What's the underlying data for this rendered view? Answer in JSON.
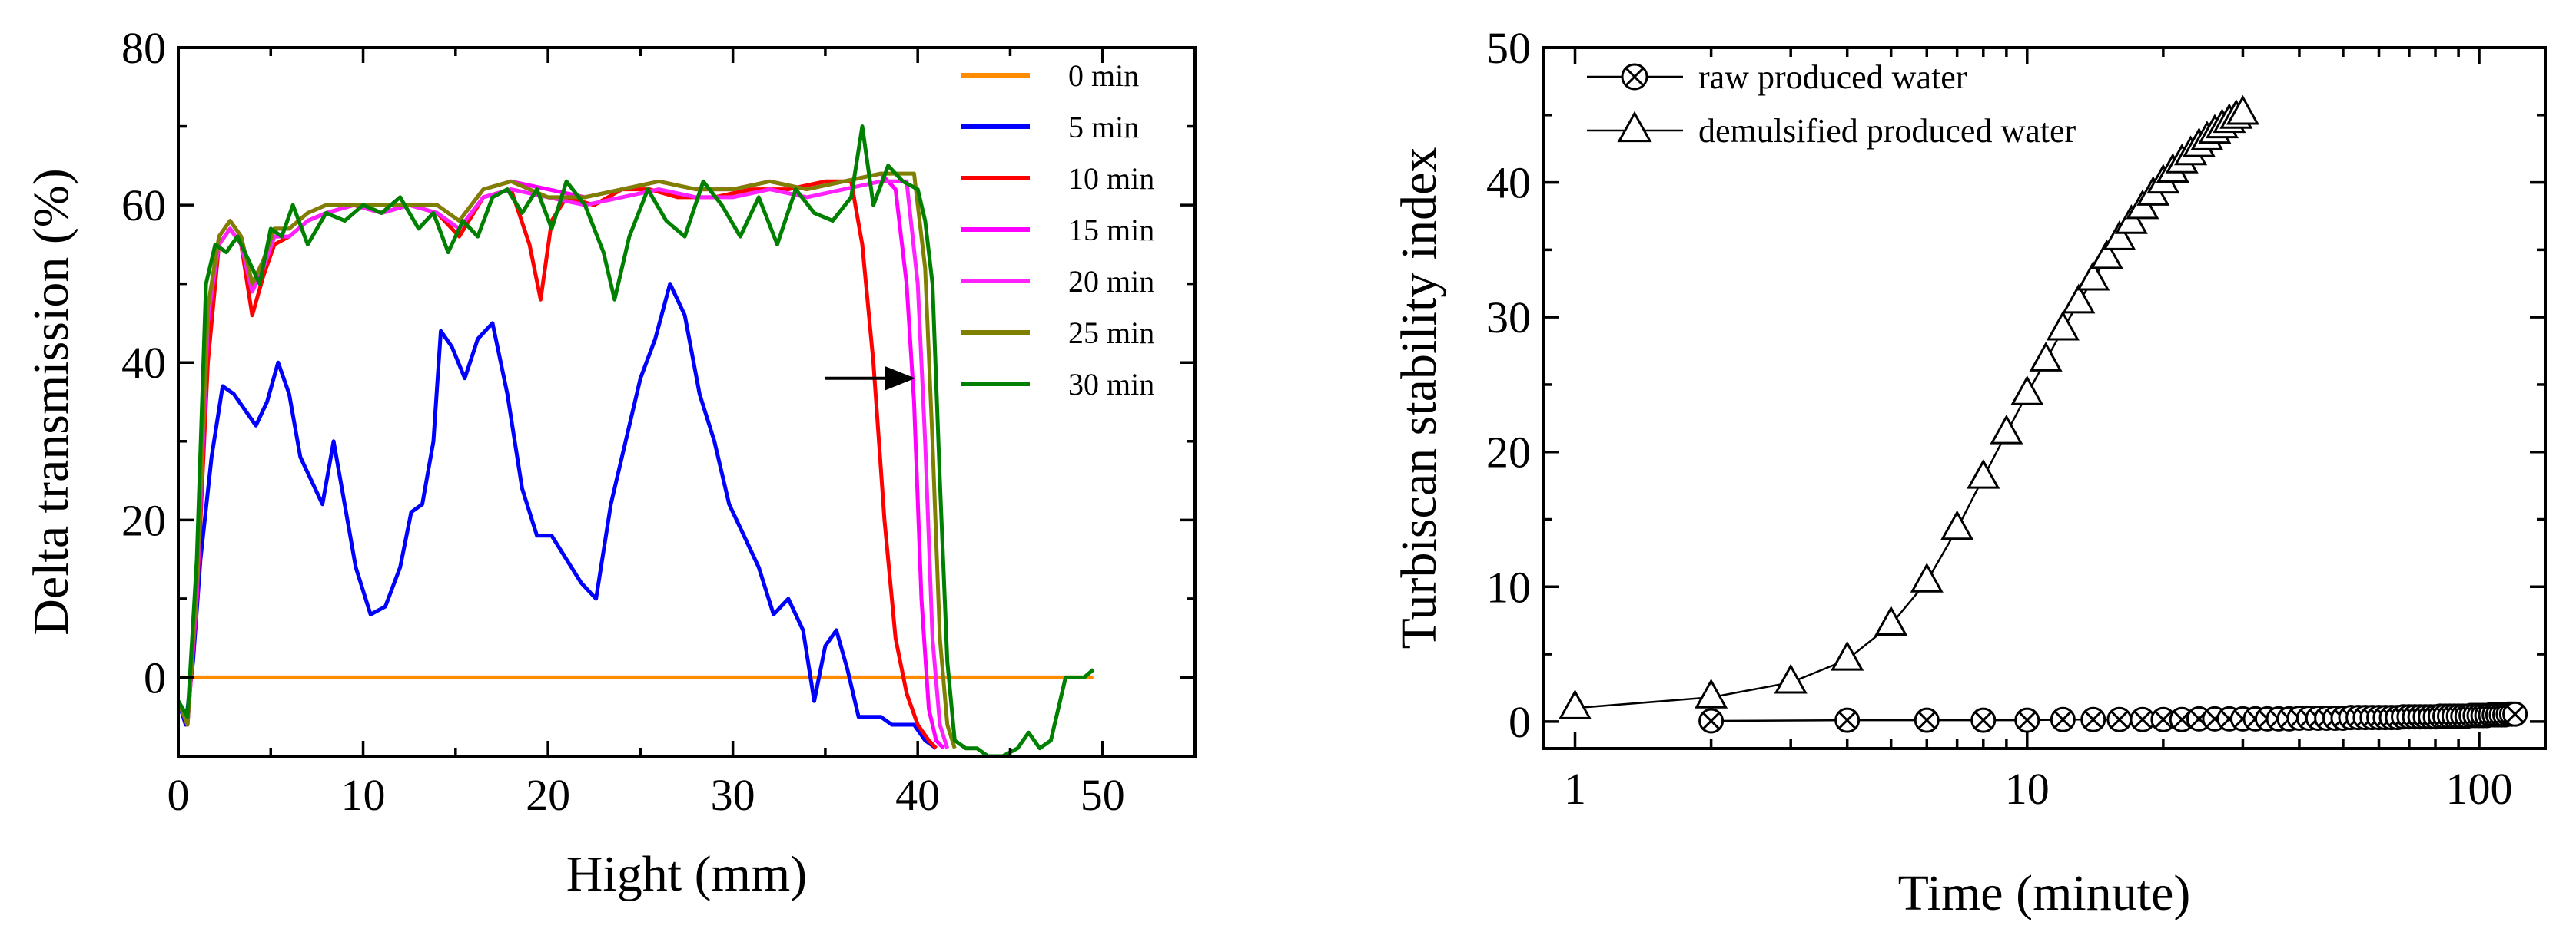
{
  "chart_data": [
    {
      "type": "line",
      "xlabel": "Hight (mm)",
      "ylabel": "Delta transmission (%)",
      "xlim": [
        0,
        55
      ],
      "ylim": [
        -10,
        80
      ],
      "xticks": [
        0,
        10,
        20,
        30,
        40,
        50
      ],
      "yticks": [
        0,
        20,
        40,
        60,
        80
      ],
      "legend_position": "top-right",
      "annotations": [
        "arrow pointing right from about 35 mm toward 40 mm at 38%"
      ],
      "series": [
        {
          "name": "0 min",
          "color": "#ff8c00",
          "x": [
            0,
            49.5
          ],
          "y": [
            0,
            0
          ]
        },
        {
          "name": "5 min",
          "color": "#0000ff",
          "x": [
            0,
            0.4,
            0.8,
            1.2,
            1.8,
            2.4,
            3.0,
            3.6,
            4.2,
            4.8,
            5.4,
            6.0,
            6.6,
            7.2,
            7.8,
            8.4,
            9.0,
            9.6,
            10.4,
            11.2,
            12.0,
            12.6,
            13.2,
            13.8,
            14.2,
            14.8,
            15.5,
            16.2,
            17.0,
            17.8,
            18.6,
            19.4,
            20.2,
            21.0,
            21.8,
            22.6,
            23.4,
            24.2,
            25.0,
            25.8,
            26.6,
            27.4,
            28.2,
            29.0,
            29.8,
            30.6,
            31.4,
            32.2,
            33.0,
            33.8,
            34.4,
            35.0,
            35.6,
            36.2,
            36.8,
            37.4,
            38.0,
            38.6,
            39.2,
            39.8,
            40.4,
            41.0
          ],
          "y": [
            -3,
            -6,
            2,
            15,
            28,
            37,
            36,
            34,
            32,
            35,
            40,
            36,
            28,
            25,
            22,
            30,
            22,
            14,
            8,
            9,
            14,
            21,
            22,
            30,
            44,
            42,
            38,
            43,
            45,
            36,
            24,
            18,
            18,
            15,
            12,
            10,
            22,
            30,
            38,
            43,
            50,
            46,
            36,
            30,
            22,
            18,
            14,
            8,
            10,
            6,
            -3,
            4,
            6,
            1,
            -5,
            -5,
            -5,
            -6,
            -6,
            -6,
            -8,
            -9
          ]
        },
        {
          "name": "10 min",
          "color": "#ff0000",
          "x": [
            0,
            0.5,
            1.0,
            1.6,
            2.2,
            2.8,
            3.4,
            4.0,
            4.6,
            5.2,
            6.0,
            7.0,
            8.0,
            9.5,
            11.0,
            12.5,
            14.0,
            15.2,
            16.5,
            18.0,
            19.0,
            19.6,
            20.2,
            21.0,
            22.5,
            24.0,
            25.5,
            27.0,
            29.0,
            31.0,
            33.0,
            35.0,
            36.4,
            37.0,
            37.6,
            38.2,
            38.8,
            39.4,
            40.0,
            40.6,
            41.0
          ],
          "y": [
            -3,
            -6,
            10,
            40,
            55,
            57,
            55,
            46,
            51,
            55,
            56,
            58,
            59,
            60,
            59,
            60,
            59,
            56,
            61,
            62,
            55,
            48,
            58,
            61,
            60,
            62,
            62,
            61,
            61,
            62,
            62,
            63,
            63,
            55,
            40,
            20,
            5,
            -2,
            -6,
            -8,
            -9
          ]
        },
        {
          "name": "15 min",
          "color": "#ff00ff",
          "x": [
            0,
            0.5,
            1.0,
            1.6,
            2.2,
            2.8,
            3.4,
            4.0,
            4.6,
            5.2,
            6.0,
            7.0,
            8.0,
            9.5,
            11.0,
            12.5,
            14.0,
            15.2,
            16.5,
            18.0,
            20.0,
            22.0,
            24.0,
            26.0,
            28.0,
            30.0,
            32.0,
            34.0,
            36.0,
            38.0,
            38.8,
            39.4,
            39.8,
            40.2,
            40.6,
            41.0,
            41.4
          ],
          "y": [
            -3,
            -6,
            10,
            45,
            56,
            58,
            56,
            50,
            53,
            57,
            57,
            59,
            60,
            60,
            60,
            60,
            60,
            58,
            62,
            63,
            62,
            61,
            62,
            63,
            62,
            62,
            63,
            62,
            63,
            64,
            62,
            50,
            35,
            10,
            -4,
            -8,
            -9
          ]
        },
        {
          "name": "20 min",
          "color": "#ff22ff",
          "x": [
            0,
            0.5,
            1.0,
            1.6,
            2.2,
            2.8,
            3.4,
            4.0,
            4.6,
            5.2,
            6.0,
            7.0,
            8.0,
            9.5,
            11.0,
            12.5,
            14.0,
            15.2,
            16.5,
            18.0,
            20.0,
            22.0,
            24.0,
            26.0,
            28.0,
            30.0,
            32.0,
            34.0,
            36.0,
            38.0,
            39.4,
            40.0,
            40.4,
            40.8,
            41.2,
            41.6
          ],
          "y": [
            -3,
            -6,
            12,
            46,
            55,
            57,
            55,
            49,
            52,
            56,
            56,
            58,
            59,
            60,
            59,
            60,
            59,
            57,
            61,
            62,
            61,
            60,
            61,
            62,
            61,
            61,
            62,
            61,
            62,
            63,
            63,
            50,
            30,
            5,
            -6,
            -9
          ]
        },
        {
          "name": "25 min",
          "color": "#808000",
          "x": [
            0,
            0.5,
            1.0,
            1.6,
            2.2,
            2.8,
            3.4,
            4.0,
            4.6,
            5.2,
            6.0,
            7.0,
            8.0,
            9.5,
            11.0,
            12.5,
            14.0,
            15.2,
            16.5,
            18.0,
            20.0,
            22.0,
            24.0,
            26.0,
            28.0,
            30.0,
            32.0,
            34.0,
            36.0,
            38.0,
            39.8,
            40.4,
            40.8,
            41.2,
            41.6,
            42.0
          ],
          "y": [
            -3,
            -6,
            12,
            47,
            56,
            58,
            56,
            50,
            53,
            57,
            57,
            59,
            60,
            60,
            60,
            60,
            60,
            58,
            62,
            63,
            61,
            61,
            62,
            63,
            62,
            62,
            63,
            62,
            63,
            64,
            64,
            52,
            30,
            5,
            -6,
            -9
          ]
        },
        {
          "name": "30 min",
          "color": "#008000",
          "x": [
            0,
            0.5,
            1.0,
            1.5,
            2.0,
            2.6,
            3.2,
            3.8,
            4.4,
            5.0,
            5.6,
            6.2,
            7.0,
            8.0,
            9.0,
            10.0,
            11.0,
            12.0,
            13.0,
            13.8,
            14.6,
            15.4,
            16.2,
            17.0,
            17.8,
            18.6,
            19.4,
            20.2,
            21.0,
            22.0,
            23.0,
            23.6,
            24.4,
            25.4,
            26.4,
            27.4,
            28.4,
            29.4,
            30.4,
            31.4,
            32.4,
            33.4,
            34.4,
            35.4,
            36.4,
            37.0,
            37.6,
            38.4,
            39.2,
            40.0,
            40.4,
            40.8,
            41.2,
            41.6,
            42.0,
            42.6,
            43.2,
            43.8,
            44.6,
            45.4,
            46.0,
            46.6,
            47.2,
            48.0,
            49.0,
            49.5
          ],
          "y": [
            -3,
            -5,
            15,
            50,
            55,
            54,
            56,
            53,
            50,
            57,
            56,
            60,
            55,
            59,
            58,
            60,
            59,
            61,
            57,
            59,
            54,
            58,
            56,
            61,
            62,
            59,
            62,
            57,
            63,
            60,
            54,
            48,
            56,
            62,
            58,
            56,
            63,
            60,
            56,
            61,
            55,
            62,
            59,
            58,
            61,
            70,
            60,
            65,
            63,
            62,
            58,
            50,
            25,
            2,
            -8,
            -9,
            -9,
            -10,
            -10,
            -9,
            -7,
            -9,
            -8,
            0,
            0,
            1
          ]
        }
      ]
    },
    {
      "type": "scatter",
      "xscale": "log",
      "xlabel": "Time (minute)",
      "ylabel": "Turbiscan stability index",
      "xlim": [
        0.85,
        140
      ],
      "ylim": [
        -2,
        50
      ],
      "xticks": [
        1,
        10,
        100
      ],
      "yticks": [
        0,
        10,
        20,
        30,
        40,
        50
      ],
      "legend_position": "top-left",
      "series": [
        {
          "name": "raw produced water",
          "marker": "circle-x",
          "x": [
            2,
            4,
            6,
            8,
            10,
            12,
            14,
            16,
            18,
            20,
            22,
            24,
            26,
            28,
            30,
            32,
            34,
            36,
            38,
            40,
            42,
            44,
            46,
            48,
            50,
            52,
            54,
            56,
            58,
            60,
            62,
            64,
            66,
            68,
            70,
            72,
            74,
            76,
            78,
            80,
            82,
            84,
            86,
            88,
            90,
            92,
            94,
            96,
            98,
            100,
            102,
            104,
            106,
            108,
            110,
            112,
            114,
            116,
            118,
            120
          ],
          "y": [
            0.05,
            0.1,
            0.1,
            0.1,
            0.1,
            0.15,
            0.15,
            0.15,
            0.15,
            0.15,
            0.15,
            0.2,
            0.2,
            0.2,
            0.2,
            0.2,
            0.2,
            0.2,
            0.2,
            0.25,
            0.25,
            0.25,
            0.25,
            0.25,
            0.25,
            0.3,
            0.3,
            0.3,
            0.3,
            0.3,
            0.3,
            0.3,
            0.3,
            0.35,
            0.35,
            0.35,
            0.35,
            0.35,
            0.35,
            0.35,
            0.4,
            0.4,
            0.4,
            0.4,
            0.4,
            0.4,
            0.4,
            0.45,
            0.45,
            0.45,
            0.45,
            0.45,
            0.5,
            0.5,
            0.5,
            0.5,
            0.5,
            0.55,
            0.55,
            0.55
          ]
        },
        {
          "name": "demulsified produced water",
          "marker": "triangle",
          "x": [
            1,
            2,
            3,
            4,
            5,
            6,
            7,
            8,
            9,
            10,
            11,
            12,
            13,
            14,
            15,
            16,
            17,
            18,
            19,
            20,
            21,
            22,
            23,
            24,
            25,
            26,
            27,
            28,
            29,
            30
          ],
          "y": [
            1.0,
            1.8,
            2.9,
            4.6,
            7.2,
            10.4,
            14.3,
            18.1,
            21.4,
            24.3,
            26.8,
            29.1,
            31.1,
            32.8,
            34.4,
            35.8,
            37.0,
            38.1,
            39.1,
            40.0,
            40.8,
            41.5,
            42.1,
            42.7,
            43.2,
            43.7,
            44.1,
            44.5,
            44.8,
            45.1
          ]
        }
      ]
    }
  ]
}
